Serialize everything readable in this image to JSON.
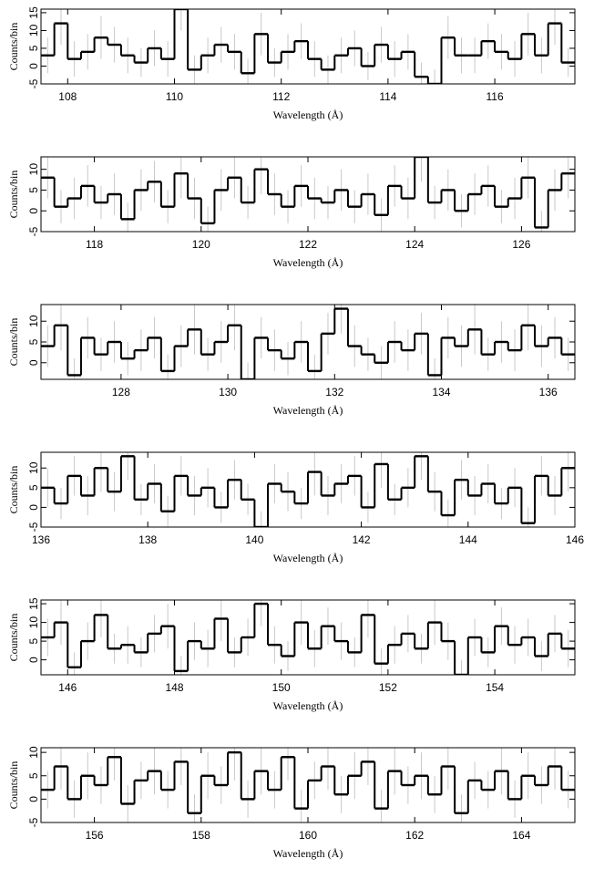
{
  "chart_data": [
    {
      "type": "histogram",
      "xlabel": "Wavelength (Å)",
      "ylabel": "Counts/bin",
      "color": "#000000",
      "error_color": "#c8c8c8",
      "xlim": [
        107.5,
        117.5
      ],
      "ylim": [
        -5,
        16
      ],
      "xticks": [
        108,
        110,
        112,
        114,
        116
      ],
      "yticks": [
        -5,
        0,
        5,
        10,
        15
      ],
      "bins": [
        107.5,
        107.75,
        108,
        108.25,
        108.5,
        108.75,
        109,
        109.25,
        109.5,
        109.75,
        110,
        110.25,
        110.5,
        110.75,
        111,
        111.25,
        111.5,
        111.75,
        112,
        112.25,
        112.5,
        112.75,
        113,
        113.25,
        113.5,
        113.75,
        114,
        114.25,
        114.5,
        114.75,
        115,
        115.25,
        115.5,
        115.75,
        116,
        116.25,
        116.5,
        116.75,
        117,
        117.25,
        117.5
      ],
      "values": [
        3,
        12,
        2,
        4,
        8,
        6,
        3,
        1,
        5,
        2,
        16,
        -1,
        3,
        6,
        4,
        -2,
        9,
        1,
        4,
        7,
        2,
        -1,
        3,
        5,
        0,
        6,
        2,
        4,
        -3,
        -5,
        8,
        3,
        3,
        7,
        4,
        2,
        9,
        3,
        12,
        1
      ],
      "errors": [
        5,
        6,
        5,
        5,
        6,
        5,
        5,
        4,
        5,
        5,
        6,
        4,
        5,
        5,
        5,
        4,
        6,
        4,
        5,
        5,
        5,
        4,
        5,
        5,
        4,
        5,
        5,
        5,
        4,
        4,
        6,
        5,
        5,
        5,
        5,
        5,
        6,
        5,
        6,
        4
      ]
    },
    {
      "type": "histogram",
      "xlabel": "Wavelength (Å)",
      "ylabel": "Counts/bin",
      "color": "#000000",
      "error_color": "#c8c8c8",
      "xlim": [
        117,
        127
      ],
      "ylim": [
        -5,
        13
      ],
      "xticks": [
        118,
        120,
        122,
        124,
        126
      ],
      "yticks": [
        -5,
        0,
        5,
        10
      ],
      "bins": [
        117,
        117.25,
        117.5,
        117.75,
        118,
        118.25,
        118.5,
        118.75,
        119,
        119.25,
        119.5,
        119.75,
        120,
        120.25,
        120.5,
        120.75,
        121,
        121.25,
        121.5,
        121.75,
        122,
        122.25,
        122.5,
        122.75,
        123,
        123.25,
        123.5,
        123.75,
        124,
        124.25,
        124.5,
        124.75,
        125,
        125.25,
        125.5,
        125.75,
        126,
        126.25,
        126.5,
        126.75,
        127
      ],
      "values": [
        8,
        1,
        3,
        6,
        2,
        4,
        -2,
        5,
        7,
        1,
        9,
        3,
        -3,
        5,
        8,
        2,
        10,
        4,
        1,
        6,
        3,
        2,
        5,
        1,
        4,
        -1,
        6,
        3,
        13,
        2,
        5,
        0,
        4,
        6,
        1,
        3,
        8,
        -4,
        5,
        9
      ],
      "errors": [
        5,
        4,
        5,
        5,
        4,
        5,
        4,
        5,
        5,
        4,
        6,
        5,
        4,
        5,
        5,
        4,
        6,
        5,
        4,
        5,
        5,
        4,
        5,
        4,
        5,
        4,
        5,
        5,
        6,
        4,
        5,
        4,
        5,
        5,
        4,
        5,
        5,
        4,
        5,
        6
      ]
    },
    {
      "type": "histogram",
      "xlabel": "Wavelength (Å)",
      "ylabel": "Counts/bin",
      "color": "#000000",
      "error_color": "#c8c8c8",
      "xlim": [
        126.5,
        136.5
      ],
      "ylim": [
        -4,
        14
      ],
      "xticks": [
        128,
        130,
        132,
        134,
        136
      ],
      "yticks": [
        0,
        5,
        10
      ],
      "bins": [
        126.5,
        126.75,
        127,
        127.25,
        127.5,
        127.75,
        128,
        128.25,
        128.5,
        128.75,
        129,
        129.25,
        129.5,
        129.75,
        130,
        130.25,
        130.5,
        130.75,
        131,
        131.25,
        131.5,
        131.75,
        132,
        132.25,
        132.5,
        132.75,
        133,
        133.25,
        133.5,
        133.75,
        134,
        134.25,
        134.5,
        134.75,
        135,
        135.25,
        135.5,
        135.75,
        136,
        136.25,
        136.5
      ],
      "values": [
        4,
        9,
        -3,
        6,
        2,
        5,
        1,
        3,
        6,
        -2,
        4,
        8,
        2,
        5,
        9,
        -4,
        6,
        3,
        1,
        5,
        -2,
        7,
        13,
        4,
        2,
        0,
        5,
        3,
        7,
        -3,
        6,
        4,
        8,
        2,
        5,
        3,
        9,
        4,
        6,
        2
      ],
      "errors": [
        5,
        6,
        4,
        5,
        4,
        5,
        4,
        5,
        5,
        4,
        5,
        6,
        4,
        5,
        6,
        4,
        5,
        5,
        4,
        5,
        4,
        5,
        6,
        5,
        4,
        4,
        5,
        5,
        5,
        4,
        5,
        5,
        6,
        4,
        5,
        5,
        6,
        5,
        5,
        4
      ]
    },
    {
      "type": "histogram",
      "xlabel": "Wavelength (Å)",
      "ylabel": "Counts/bin",
      "color": "#000000",
      "error_color": "#c8c8c8",
      "xlim": [
        136,
        146
      ],
      "ylim": [
        -5,
        14
      ],
      "xticks": [
        136,
        138,
        140,
        142,
        144,
        146
      ],
      "yticks": [
        -5,
        0,
        5,
        10
      ],
      "bins": [
        136,
        136.25,
        136.5,
        136.75,
        137,
        137.25,
        137.5,
        137.75,
        138,
        138.25,
        138.5,
        138.75,
        139,
        139.25,
        139.5,
        139.75,
        140,
        140.25,
        140.5,
        140.75,
        141,
        141.25,
        141.5,
        141.75,
        142,
        142.25,
        142.5,
        142.75,
        143,
        143.25,
        143.5,
        143.75,
        144,
        144.25,
        144.5,
        144.75,
        145,
        145.25,
        145.5,
        145.75,
        146
      ],
      "values": [
        5,
        1,
        8,
        3,
        10,
        4,
        13,
        2,
        6,
        -1,
        8,
        3,
        5,
        0,
        7,
        2,
        -5,
        6,
        4,
        1,
        9,
        3,
        6,
        8,
        0,
        11,
        2,
        5,
        13,
        4,
        -2,
        7,
        3,
        6,
        1,
        5,
        -4,
        8,
        3,
        10
      ],
      "errors": [
        5,
        4,
        5,
        5,
        6,
        5,
        6,
        4,
        5,
        4,
        5,
        5,
        5,
        4,
        5,
        4,
        4,
        5,
        5,
        4,
        6,
        5,
        5,
        5,
        4,
        6,
        4,
        5,
        6,
        5,
        4,
        5,
        5,
        5,
        4,
        5,
        4,
        5,
        5,
        6
      ]
    },
    {
      "type": "histogram",
      "xlabel": "Wavelength (Å)",
      "ylabel": "Counts/bin",
      "color": "#000000",
      "error_color": "#c8c8c8",
      "xlim": [
        145.5,
        155.5
      ],
      "ylim": [
        -4,
        16
      ],
      "xticks": [
        146,
        148,
        150,
        152,
        154
      ],
      "yticks": [
        0,
        5,
        10,
        15
      ],
      "bins": [
        145.5,
        145.75,
        146,
        146.25,
        146.5,
        146.75,
        147,
        147.25,
        147.5,
        147.75,
        148,
        148.25,
        148.5,
        148.75,
        149,
        149.25,
        149.5,
        149.75,
        150,
        150.25,
        150.5,
        150.75,
        151,
        151.25,
        151.5,
        151.75,
        152,
        152.25,
        152.5,
        152.75,
        153,
        153.25,
        153.5,
        153.75,
        154,
        154.25,
        154.5,
        154.75,
        155,
        155.25,
        155.5
      ],
      "values": [
        6,
        10,
        -2,
        5,
        12,
        3,
        4,
        2,
        7,
        9,
        -3,
        5,
        3,
        11,
        2,
        6,
        15,
        4,
        1,
        10,
        3,
        9,
        5,
        2,
        12,
        -1,
        4,
        7,
        3,
        10,
        5,
        -4,
        6,
        2,
        9,
        4,
        6,
        1,
        7,
        3
      ],
      "errors": [
        5,
        6,
        4,
        5,
        6,
        4,
        5,
        4,
        5,
        6,
        4,
        5,
        5,
        6,
        4,
        5,
        6,
        5,
        4,
        6,
        5,
        5,
        5,
        4,
        6,
        4,
        5,
        5,
        4,
        6,
        5,
        4,
        5,
        4,
        5,
        5,
        5,
        4,
        5,
        5
      ]
    },
    {
      "type": "histogram",
      "xlabel": "Wavelength (Å)",
      "ylabel": "Counts/bin",
      "color": "#000000",
      "error_color": "#c8c8c8",
      "xlim": [
        155,
        165
      ],
      "ylim": [
        -5,
        11
      ],
      "xticks": [
        156,
        158,
        160,
        162,
        164
      ],
      "yticks": [
        -5,
        0,
        5,
        10
      ],
      "bins": [
        155,
        155.25,
        155.5,
        155.75,
        156,
        156.25,
        156.5,
        156.75,
        157,
        157.25,
        157.5,
        157.75,
        158,
        158.25,
        158.5,
        158.75,
        159,
        159.25,
        159.5,
        159.75,
        160,
        160.25,
        160.5,
        160.75,
        161,
        161.25,
        161.5,
        161.75,
        162,
        162.25,
        162.5,
        162.75,
        163,
        163.25,
        163.5,
        163.75,
        164,
        164.25,
        164.5,
        164.75,
        165
      ],
      "values": [
        2,
        7,
        0,
        5,
        3,
        9,
        -1,
        4,
        6,
        2,
        8,
        -3,
        5,
        3,
        10,
        0,
        6,
        2,
        9,
        -2,
        4,
        7,
        1,
        5,
        8,
        -2,
        6,
        3,
        5,
        1,
        7,
        -3,
        4,
        2,
        6,
        0,
        5,
        3,
        7,
        2
      ],
      "errors": [
        4,
        5,
        4,
        5,
        4,
        5,
        4,
        4,
        5,
        4,
        5,
        4,
        5,
        4,
        6,
        4,
        5,
        4,
        5,
        4,
        4,
        5,
        4,
        5,
        5,
        4,
        5,
        4,
        5,
        4,
        5,
        4,
        4,
        4,
        5,
        4,
        5,
        4,
        5,
        4
      ]
    }
  ]
}
